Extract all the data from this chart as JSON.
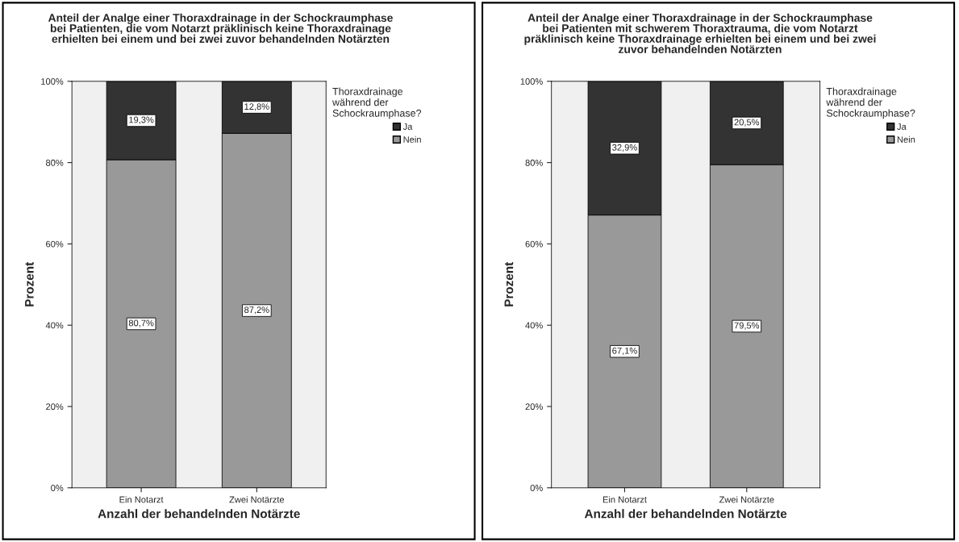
{
  "chart_data": [
    {
      "type": "bar",
      "stacked": true,
      "title": "Anteil der Analge einer Thoraxdrainage in der Schockraumphase\nbei Patienten, die vom Notarzt präklinisch keine Thoraxdrainage\nerhielten bei einem und bei zwei zuvor behandelnden Notärzten",
      "xlabel": "Anzahl der behandelnden Notärzte",
      "ylabel": "Prozent",
      "legend_title": "Thoraxdrainage\nwährend der\nSchockraumphase?",
      "categories": [
        "Ein Notarzt",
        "Zwei Notärzte"
      ],
      "series": [
        {
          "name": "Nein",
          "color": "#999999",
          "values": [
            80.7,
            87.2
          ],
          "value_labels": [
            "80,7%",
            "87,2%"
          ]
        },
        {
          "name": "Ja",
          "color": "#333333",
          "values": [
            19.3,
            12.8
          ],
          "value_labels": [
            "19,3%",
            "12,8%"
          ]
        }
      ],
      "ylim": [
        0,
        100
      ],
      "yticks": [
        {
          "value": 0,
          "label": "0%"
        },
        {
          "value": 20,
          "label": "20%"
        },
        {
          "value": 40,
          "label": "40%"
        },
        {
          "value": 60,
          "label": "60%"
        },
        {
          "value": 80,
          "label": "80%"
        },
        {
          "value": 100,
          "label": "100%"
        }
      ],
      "grid": false,
      "legend": "right"
    },
    {
      "type": "bar",
      "stacked": true,
      "title": "Anteil der Analge einer Thoraxdrainage in der Schockraumphase\nbei Patienten mit schwerem Thoraxtrauma, die vom Notarzt\npräklinisch keine Thoraxdrainage erhielten bei einem und bei zwei\nzuvor behandelnden Notärzten",
      "xlabel": "Anzahl der behandelnden Notärzte",
      "ylabel": "Prozent",
      "legend_title": "Thoraxdrainage\nwährend der\nSchockraumphase?",
      "categories": [
        "Ein Notarzt",
        "Zwei Notärzte"
      ],
      "series": [
        {
          "name": "Nein",
          "color": "#999999",
          "values": [
            67.1,
            79.5
          ],
          "value_labels": [
            "67,1%",
            "79,5%"
          ]
        },
        {
          "name": "Ja",
          "color": "#333333",
          "values": [
            32.9,
            20.5
          ],
          "value_labels": [
            "32,9%",
            "20,5%"
          ]
        }
      ],
      "ylim": [
        0,
        100
      ],
      "yticks": [
        {
          "value": 0,
          "label": "0%"
        },
        {
          "value": 20,
          "label": "20%"
        },
        {
          "value": 40,
          "label": "40%"
        },
        {
          "value": 60,
          "label": "60%"
        },
        {
          "value": 80,
          "label": "80%"
        },
        {
          "value": 100,
          "label": "100%"
        }
      ],
      "grid": false,
      "legend": "right"
    }
  ]
}
